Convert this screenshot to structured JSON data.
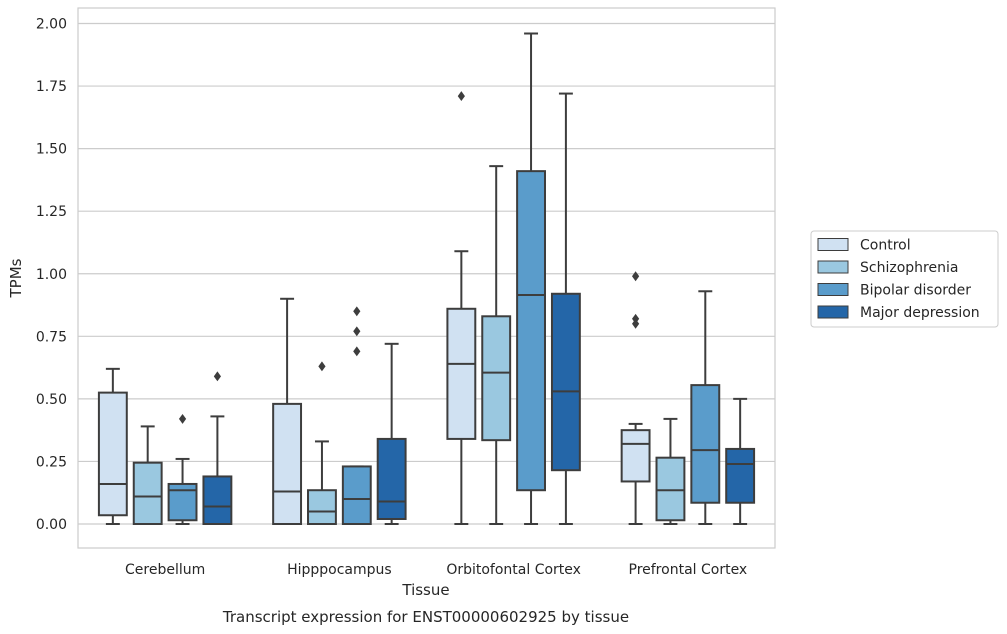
{
  "chart_data": {
    "type": "boxplot",
    "xlabel": "Tissue",
    "ylabel": "TPMs",
    "caption": "Transcript expression for ENST00000602925 by tissue",
    "ylim": [
      -0.1,
      2.06
    ],
    "yticks": [
      "0.00",
      "0.25",
      "0.50",
      "0.75",
      "1.00",
      "1.25",
      "1.50",
      "1.75",
      "2.00"
    ],
    "ytick_values": [
      0,
      0.25,
      0.5,
      0.75,
      1.0,
      1.25,
      1.5,
      1.75,
      2.0
    ],
    "grid": true,
    "legend_position": "right",
    "categories": [
      "Cerebellum",
      "Hipppocampus",
      "Orbitofontal Cortex",
      "Prefrontal Cortex"
    ],
    "series": [
      {
        "name": "Control",
        "color": "#d0e1f2",
        "boxes": [
          {
            "min": 0.0,
            "q1": 0.035,
            "median": 0.16,
            "q3": 0.525,
            "max": 0.62,
            "outliers": []
          },
          {
            "min": 0.0,
            "q1": 0.0,
            "median": 0.13,
            "q3": 0.48,
            "max": 0.9,
            "outliers": []
          },
          {
            "min": 0.0,
            "q1": 0.34,
            "median": 0.64,
            "q3": 0.86,
            "max": 1.09,
            "outliers": [
              1.71
            ]
          },
          {
            "min": 0.0,
            "q1": 0.17,
            "median": 0.32,
            "q3": 0.375,
            "max": 0.4,
            "outliers": [
              0.99,
              0.82,
              0.8
            ]
          }
        ]
      },
      {
        "name": "Schizophrenia",
        "color": "#9ac8e0",
        "boxes": [
          {
            "min": 0.0,
            "q1": 0.0,
            "median": 0.11,
            "q3": 0.245,
            "max": 0.39,
            "outliers": []
          },
          {
            "min": 0.0,
            "q1": 0.0,
            "median": 0.05,
            "q3": 0.135,
            "max": 0.33,
            "outliers": [
              0.63
            ]
          },
          {
            "min": 0.0,
            "q1": 0.335,
            "median": 0.605,
            "q3": 0.83,
            "max": 1.43,
            "outliers": []
          },
          {
            "min": 0.0,
            "q1": 0.015,
            "median": 0.135,
            "q3": 0.265,
            "max": 0.42,
            "outliers": []
          }
        ]
      },
      {
        "name": "Bipolar disorder",
        "color": "#5a9ccb",
        "boxes": [
          {
            "min": 0.0,
            "q1": 0.015,
            "median": 0.135,
            "q3": 0.16,
            "max": 0.26,
            "outliers": [
              0.42
            ]
          },
          {
            "min": 0.0,
            "q1": 0.0,
            "median": 0.1,
            "q3": 0.23,
            "max": 0.23,
            "outliers": [
              0.85,
              0.77,
              0.69
            ]
          },
          {
            "min": 0.0,
            "q1": 0.135,
            "median": 0.915,
            "q3": 1.41,
            "max": 1.96,
            "outliers": []
          },
          {
            "min": 0.0,
            "q1": 0.085,
            "median": 0.295,
            "q3": 0.555,
            "max": 0.93,
            "outliers": []
          }
        ]
      },
      {
        "name": "Major depression",
        "color": "#2466a8",
        "boxes": [
          {
            "min": 0.0,
            "q1": 0.0,
            "median": 0.07,
            "q3": 0.19,
            "max": 0.43,
            "outliers": [
              0.59
            ]
          },
          {
            "min": 0.0,
            "q1": 0.02,
            "median": 0.09,
            "q3": 0.34,
            "max": 0.72,
            "outliers": []
          },
          {
            "min": 0.0,
            "q1": 0.215,
            "median": 0.53,
            "q3": 0.92,
            "max": 1.72,
            "outliers": []
          },
          {
            "min": 0.0,
            "q1": 0.085,
            "median": 0.24,
            "q3": 0.3,
            "max": 0.5,
            "outliers": []
          }
        ]
      }
    ]
  }
}
